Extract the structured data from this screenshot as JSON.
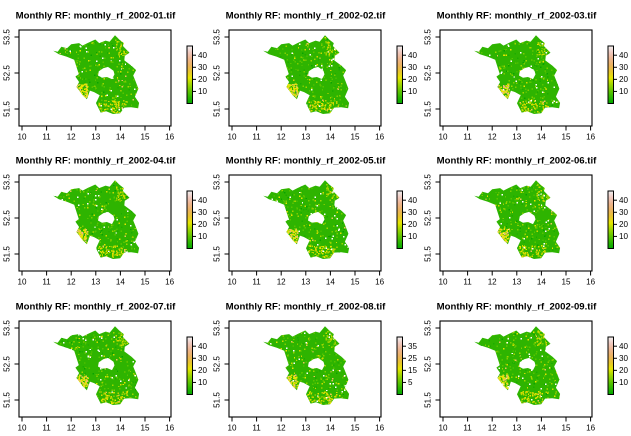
{
  "figure": {
    "background": "#ffffff",
    "description": "3x3 grid of R raster plots of monthly rainfall over Brandenburg, Germany (white hole = Berlin)"
  },
  "axes": {
    "x_ticks": [
      "10",
      "11",
      "12",
      "13",
      "14",
      "15",
      "16"
    ],
    "y_ticks": [
      "53.5",
      "52.5",
      "51.5"
    ]
  },
  "legend": {
    "palette_name": "terrain (green low to white high)",
    "colors": [
      "#00A600",
      "#2DB600",
      "#63C600",
      "#A0D600",
      "#E6E600",
      "#E8C32E",
      "#EBB25E",
      "#EDB48E",
      "#F0C9C0",
      "#F2F2F2"
    ]
  },
  "map": {
    "region": "Brandenburg with Berlin hole",
    "base_color": "#2EB400",
    "nodata_color": "#FFFFFF"
  },
  "tiles": [
    {
      "month": "2002-01",
      "title": "Monthly RF: monthly_rf_2002-01.tif",
      "legend_labels": [
        "40",
        "30",
        "20",
        "10"
      ]
    },
    {
      "month": "2002-02",
      "title": "Monthly RF: monthly_rf_2002-02.tif",
      "legend_labels": [
        "40",
        "30",
        "20",
        "10"
      ]
    },
    {
      "month": "2002-03",
      "title": "Monthly RF: monthly_rf_2002-03.tif",
      "legend_labels": [
        "40",
        "30",
        "20",
        "10"
      ]
    },
    {
      "month": "2002-04",
      "title": "Monthly RF: monthly_rf_2002-04.tif",
      "legend_labels": [
        "40",
        "30",
        "20",
        "10"
      ]
    },
    {
      "month": "2002-05",
      "title": "Monthly RF: monthly_rf_2002-05.tif",
      "legend_labels": [
        "40",
        "30",
        "20",
        "10"
      ]
    },
    {
      "month": "2002-06",
      "title": "Monthly RF: monthly_rf_2002-06.tif",
      "legend_labels": [
        "40",
        "30",
        "20",
        "10"
      ]
    },
    {
      "month": "2002-07",
      "title": "Monthly RF: monthly_rf_2002-07.tif",
      "legend_labels": [
        "40",
        "30",
        "20",
        "10"
      ]
    },
    {
      "month": "2002-08",
      "title": "Monthly RF: monthly_rf_2002-08.tif",
      "legend_labels": [
        "35",
        "25",
        "15",
        "5"
      ]
    },
    {
      "month": "2002-09",
      "title": "Monthly RF: monthly_rf_2002-09.tif",
      "legend_labels": [
        "40",
        "30",
        "20",
        "10"
      ]
    }
  ],
  "chart_data": [
    {
      "type": "heatmap",
      "title": "Monthly RF: monthly_rf_2002-01.tif",
      "x_ticks": [
        10,
        11,
        12,
        13,
        14,
        15,
        16
      ],
      "y_ticks": [
        53.5,
        52.5,
        51.5
      ],
      "x_range": [
        9.7,
        16.3
      ],
      "y_range": [
        51.2,
        53.8
      ],
      "colorbar_ticks": [
        10,
        20,
        30,
        40
      ],
      "color_low": "green",
      "color_high": "white",
      "region": "Brandenburg raster"
    },
    {
      "type": "heatmap",
      "title": "Monthly RF: monthly_rf_2002-02.tif",
      "x_ticks": [
        10,
        11,
        12,
        13,
        14,
        15,
        16
      ],
      "y_ticks": [
        53.5,
        52.5,
        51.5
      ],
      "x_range": [
        9.7,
        16.3
      ],
      "y_range": [
        51.2,
        53.8
      ],
      "colorbar_ticks": [
        10,
        20,
        30,
        40
      ],
      "color_low": "green",
      "color_high": "white",
      "region": "Brandenburg raster"
    },
    {
      "type": "heatmap",
      "title": "Monthly RF: monthly_rf_2002-03.tif",
      "x_ticks": [
        10,
        11,
        12,
        13,
        14,
        15,
        16
      ],
      "y_ticks": [
        53.5,
        52.5,
        51.5
      ],
      "x_range": [
        9.7,
        16.3
      ],
      "y_range": [
        51.2,
        53.8
      ],
      "colorbar_ticks": [
        10,
        20,
        30,
        40
      ],
      "color_low": "green",
      "color_high": "white",
      "region": "Brandenburg raster"
    },
    {
      "type": "heatmap",
      "title": "Monthly RF: monthly_rf_2002-04.tif",
      "x_ticks": [
        10,
        11,
        12,
        13,
        14,
        15,
        16
      ],
      "y_ticks": [
        53.5,
        52.5,
        51.5
      ],
      "x_range": [
        9.7,
        16.3
      ],
      "y_range": [
        51.2,
        53.8
      ],
      "colorbar_ticks": [
        10,
        20,
        30,
        40
      ],
      "color_low": "green",
      "color_high": "white",
      "region": "Brandenburg raster"
    },
    {
      "type": "heatmap",
      "title": "Monthly RF: monthly_rf_2002-05.tif",
      "x_ticks": [
        10,
        11,
        12,
        13,
        14,
        15,
        16
      ],
      "y_ticks": [
        53.5,
        52.5,
        51.5
      ],
      "x_range": [
        9.7,
        16.3
      ],
      "y_range": [
        51.2,
        53.8
      ],
      "colorbar_ticks": [
        10,
        20,
        30,
        40
      ],
      "color_low": "green",
      "color_high": "white",
      "region": "Brandenburg raster"
    },
    {
      "type": "heatmap",
      "title": "Monthly RF: monthly_rf_2002-06.tif",
      "x_ticks": [
        10,
        11,
        12,
        13,
        14,
        15,
        16
      ],
      "y_ticks": [
        53.5,
        52.5,
        51.5
      ],
      "x_range": [
        9.7,
        16.3
      ],
      "y_range": [
        51.2,
        53.8
      ],
      "colorbar_ticks": [
        10,
        20,
        30,
        40
      ],
      "color_low": "green",
      "color_high": "white",
      "region": "Brandenburg raster"
    },
    {
      "type": "heatmap",
      "title": "Monthly RF: monthly_rf_2002-07.tif",
      "x_ticks": [
        10,
        11,
        12,
        13,
        14,
        15,
        16
      ],
      "y_ticks": [
        53.5,
        52.5,
        51.5
      ],
      "x_range": [
        9.7,
        16.3
      ],
      "y_range": [
        51.2,
        53.8
      ],
      "colorbar_ticks": [
        10,
        20,
        30,
        40
      ],
      "color_low": "green",
      "color_high": "white",
      "region": "Brandenburg raster"
    },
    {
      "type": "heatmap",
      "title": "Monthly RF: monthly_rf_2002-08.tif",
      "x_ticks": [
        10,
        11,
        12,
        13,
        14,
        15,
        16
      ],
      "y_ticks": [
        53.5,
        52.5,
        51.5
      ],
      "x_range": [
        9.7,
        16.3
      ],
      "y_range": [
        51.2,
        53.8
      ],
      "colorbar_ticks": [
        5,
        15,
        25,
        35
      ],
      "color_low": "green",
      "color_high": "white",
      "region": "Brandenburg raster"
    },
    {
      "type": "heatmap",
      "title": "Monthly RF: monthly_rf_2002-09.tif",
      "x_ticks": [
        10,
        11,
        12,
        13,
        14,
        15,
        16
      ],
      "y_ticks": [
        53.5,
        52.5,
        51.5
      ],
      "x_range": [
        9.7,
        16.3
      ],
      "y_range": [
        51.2,
        53.8
      ],
      "colorbar_ticks": [
        10,
        20,
        30,
        40
      ],
      "color_low": "green",
      "color_high": "white",
      "region": "Brandenburg raster"
    }
  ]
}
